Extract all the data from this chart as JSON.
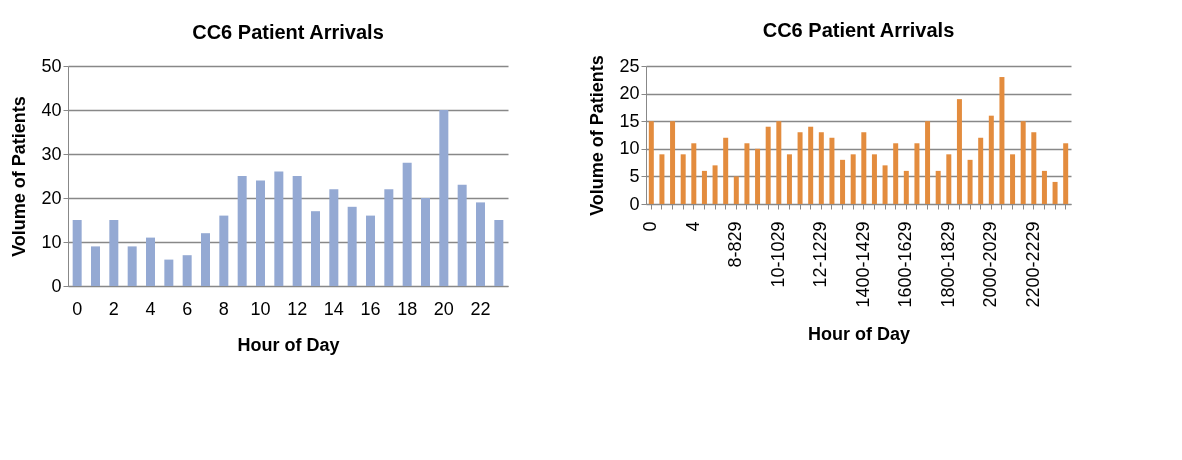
{
  "chart_data": [
    {
      "type": "bar",
      "title": "CC6 Patient Arrivals",
      "xlabel": "Hour of Day",
      "ylabel": "Volume of Patients",
      "categories": [
        "0",
        null,
        "2",
        null,
        "4",
        null,
        "6",
        null,
        "8",
        null,
        "10",
        null,
        "12",
        null,
        "14",
        null,
        "16",
        null,
        "18",
        null,
        "20",
        null,
        "22",
        null
      ],
      "series": [
        {
          "color": "#94a9d3",
          "values": [
            15,
            9,
            15,
            9,
            11,
            6,
            7,
            12,
            16,
            25,
            24,
            26,
            25,
            17,
            22,
            18,
            16,
            22,
            28,
            20,
            40,
            23,
            19,
            15
          ]
        }
      ],
      "ylim": [
        0,
        50
      ],
      "yticks": [
        0,
        10,
        20,
        30,
        40,
        50
      ],
      "grid": "y"
    },
    {
      "type": "bar",
      "title": "CC6 Patient Arrivals",
      "xlabel": "Hour of Day",
      "ylabel": "Volume of Patients",
      "categories": [
        "0",
        null,
        null,
        null,
        "4",
        null,
        null,
        null,
        "8-829",
        null,
        null,
        null,
        "10-1029",
        null,
        null,
        null,
        "12-1229",
        null,
        null,
        null,
        "1400-1429",
        null,
        null,
        null,
        "1600-1629",
        null,
        null,
        null,
        "1800-1829",
        null,
        null,
        null,
        "2000-2029",
        null,
        null,
        null,
        "2200-2229",
        null,
        null,
        null
      ],
      "series": [
        {
          "color": "#e38c3e",
          "values": [
            15,
            9,
            15,
            9,
            11,
            6,
            7,
            12,
            5,
            11,
            10,
            14,
            15,
            9,
            13,
            14,
            13,
            12,
            8,
            9,
            13,
            9,
            7,
            11,
            6,
            11,
            15,
            6,
            9,
            19,
            8,
            12,
            16,
            23,
            9,
            15,
            13,
            6,
            4,
            11
          ]
        }
      ],
      "ylim": [
        0,
        25
      ],
      "yticks": [
        0,
        5,
        10,
        15,
        20,
        25
      ],
      "grid": "y"
    }
  ]
}
